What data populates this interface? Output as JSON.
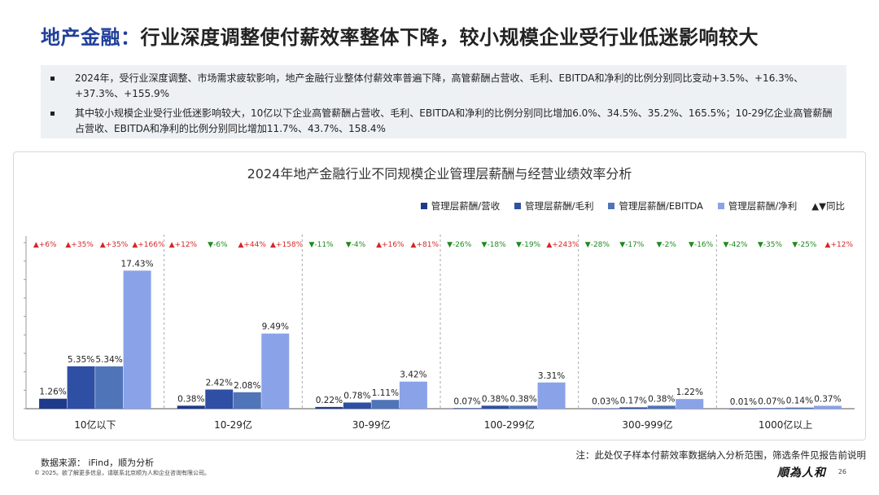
{
  "header": {
    "title_main": "地产金融：",
    "title_rest": "行业深度调整使付薪效率整体下降，较小规模企业受行业低迷影响较大"
  },
  "summary": {
    "bullets": [
      "2024年，受行业深度调整、市场需求疲软影响，地产金融行业整体付薪效率普遍下降，高管薪酬占营收、毛利、EBITDA和净利的比例分别同比变动+3.5%、+16.3%、+37.3%、+155.9%",
      "其中较小规模企业受行业低迷影响较大，10亿以下企业高管薪酬占营收、毛利、EBITDA和净利的比例分别同比增加6.0%、34.5%、35.2%、165.5%；10-29亿企业高管薪酬占营收、EBITDA和净利的比例分别同比增加11.7%、43.7%、158.4%"
    ]
  },
  "chart_title": "2024年地产金融行业不同规模企业管理层薪酬与经营业绩效率分析",
  "legend": {
    "yoy_label": "▲▼同比"
  },
  "chart_data": {
    "type": "bar",
    "title": "2024年地产金融行业不同规模企业管理层薪酬与经营业绩效率分析",
    "categories": [
      "10亿以下",
      "10-29亿",
      "30-99亿",
      "100-299亿",
      "300-999亿",
      "1000亿以上"
    ],
    "series": [
      {
        "name": "管理层薪酬/营收",
        "color": "#1f3a8a",
        "values": [
          1.26,
          0.38,
          0.22,
          0.07,
          0.03,
          0.01
        ],
        "labels": [
          "1.26%",
          "0.38%",
          "0.22%",
          "0.07%",
          "0.03%",
          "0.01%"
        ]
      },
      {
        "name": "管理层薪酬/毛利",
        "color": "#2e4fa3",
        "values": [
          5.35,
          2.42,
          0.78,
          0.38,
          0.17,
          0.07
        ],
        "labels": [
          "5.35%",
          "2.42%",
          "0.78%",
          "0.38%",
          "0.17%",
          "0.07%"
        ]
      },
      {
        "name": "管理层薪酬/EBITDA",
        "color": "#4f74b8",
        "values": [
          5.34,
          2.08,
          1.11,
          0.38,
          0.38,
          0.14
        ],
        "labels": [
          "5.34%",
          "2.08%",
          "1.11%",
          "0.38%",
          "0.38%",
          "0.14%"
        ]
      },
      {
        "name": "管理层薪酬/净利",
        "color": "#8aa2e8",
        "values": [
          17.43,
          9.49,
          3.42,
          3.31,
          1.22,
          0.37
        ],
        "labels": [
          "17.43%",
          "9.49%",
          "3.42%",
          "3.31%",
          "1.22%",
          "0.37%"
        ]
      }
    ],
    "yoy": [
      [
        {
          "text": "▲+6%",
          "dir": "up"
        },
        {
          "text": "▲+35%",
          "dir": "up"
        },
        {
          "text": "▲+35%",
          "dir": "up"
        },
        {
          "text": "▲+166%",
          "dir": "up"
        }
      ],
      [
        {
          "text": "▲+12%",
          "dir": "up"
        },
        {
          "text": "▼-6%",
          "dir": "down"
        },
        {
          "text": "▲+44%",
          "dir": "up"
        },
        {
          "text": "▲+158%",
          "dir": "up"
        }
      ],
      [
        {
          "text": "▼-11%",
          "dir": "down"
        },
        {
          "text": "▼-4%",
          "dir": "down"
        },
        {
          "text": "▲+16%",
          "dir": "up"
        },
        {
          "text": "▲+81%",
          "dir": "up"
        }
      ],
      [
        {
          "text": "▼-26%",
          "dir": "down"
        },
        {
          "text": "▼-18%",
          "dir": "down"
        },
        {
          "text": "▼-19%",
          "dir": "down"
        },
        {
          "text": "▲+243%",
          "dir": "up"
        }
      ],
      [
        {
          "text": "▼-28%",
          "dir": "down"
        },
        {
          "text": "▼-17%",
          "dir": "down"
        },
        {
          "text": "▼-2%",
          "dir": "down"
        },
        {
          "text": "▼-16%",
          "dir": "down"
        }
      ],
      [
        {
          "text": "▼-42%",
          "dir": "down"
        },
        {
          "text": "▼-35%",
          "dir": "down"
        },
        {
          "text": "▼-25%",
          "dir": "down"
        },
        {
          "text": "▲+12%",
          "dir": "up"
        }
      ]
    ],
    "up_color": "#d62728",
    "down_color": "#1e8a1e",
    "ylim": [
      0,
      18.5
    ],
    "grid": false,
    "legend_position": "top-right"
  },
  "footer": {
    "note": "注：此处仅子样本付薪效率数据纳入分析范围，筛选条件见报告前说明",
    "source": "数据来源： iFind，顺为分析",
    "copyright": "© 2025。欲了解更多信息，请联系北京顺为人和企业咨询有限公司。",
    "brand": "順為人和",
    "page": "26"
  }
}
